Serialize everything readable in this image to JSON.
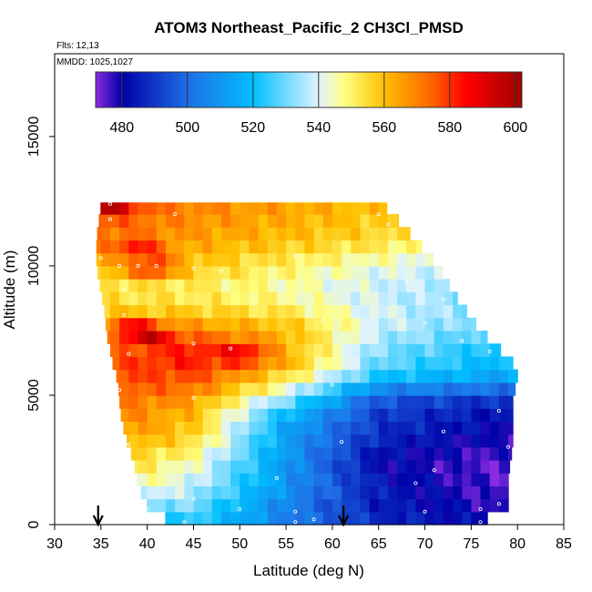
{
  "chart_data": {
    "type": "heatmap",
    "title": "ATOM3 Northeast_Pacific_2 CH3Cl_PMSD",
    "flights_text": "Flts: 12,13",
    "dates_text": "MMDD: 1025,1027",
    "xlabel": "Latitude (deg N)",
    "ylabel": "Altitude (m)",
    "xlim": [
      30,
      85
    ],
    "ylim": [
      0,
      18200
    ],
    "x_ticks": [
      30,
      35,
      40,
      45,
      50,
      55,
      60,
      65,
      70,
      75,
      80,
      85
    ],
    "y_ticks": [
      0,
      5000,
      10000,
      15000
    ],
    "grid": false,
    "colorbar": {
      "placement": "top",
      "range": [
        472,
        602
      ],
      "tick_values": [
        480,
        500,
        520,
        540,
        560,
        580,
        600
      ],
      "tick_labels": [
        "480",
        "500",
        "520",
        "540",
        "560",
        "580",
        "600"
      ],
      "colors": [
        "#8a2be2",
        "#0000a8",
        "#1e6ee6",
        "#00bfff",
        "#dff3ff",
        "#ffff80",
        "#ffc000",
        "#ff6000",
        "#ff0000",
        "#a00000"
      ],
      "color_stops": [
        472,
        480,
        500,
        520,
        540,
        548,
        560,
        575,
        585,
        602
      ]
    },
    "arrows": [
      34.7,
      61.2
    ],
    "grid_spacing": {
      "dlat": 1,
      "dalt": 500
    },
    "field_profile": {
      "altitude_m": [
        0,
        700,
        1500,
        2500,
        3000,
        3600,
        4500,
        5000,
        5500,
        6000,
        6500,
        6800,
        7500,
        8000,
        9000,
        10000,
        11000,
        12400
      ],
      "left_edge_lat": [
        43,
        40,
        39,
        38.5,
        38,
        37.5,
        37,
        37,
        36.8,
        36.5,
        36,
        36,
        35.5,
        35.5,
        35,
        34.5,
        34.5,
        35
      ],
      "right_edge_lat": [
        75.5,
        79,
        79,
        79.2,
        79.5,
        79.5,
        79.5,
        79.5,
        80,
        80,
        79,
        78,
        76,
        75,
        73,
        71.5,
        69,
        65.5
      ],
      "south_lat": [
        36,
        45,
        55,
        65,
        77
      ],
      "values": [
        [
          515,
          522,
          505,
          488,
          482
        ],
        [
          535,
          530,
          505,
          485,
          478
        ],
        [
          548,
          538,
          510,
          485,
          475
        ],
        [
          560,
          545,
          510,
          480,
          475
        ],
        [
          562,
          552,
          512,
          485,
          478
        ],
        [
          568,
          558,
          512,
          488,
          480
        ],
        [
          572,
          562,
          522,
          492,
          485
        ],
        [
          575,
          568,
          538,
          498,
          492
        ],
        [
          578,
          575,
          548,
          515,
          510
        ],
        [
          578,
          580,
          560,
          528,
          518
        ],
        [
          575,
          585,
          565,
          530,
          520
        ],
        [
          572,
          583,
          562,
          532,
          522
        ],
        [
          566,
          570,
          562,
          538,
          528
        ],
        [
          560,
          560,
          555,
          540,
          530
        ],
        [
          552,
          550,
          545,
          538,
          532
        ],
        [
          562,
          558,
          550,
          542,
          538
        ],
        [
          570,
          565,
          560,
          555,
          545
        ],
        [
          578,
          570,
          565,
          560,
          552
        ]
      ],
      "hotspots": [
        {
          "lat": 50,
          "alt_m": 6600,
          "value": 590
        },
        {
          "lat": 40,
          "alt_m": 7300,
          "value": 598
        },
        {
          "lat": 40.5,
          "alt_m": 10000,
          "value": 590
        },
        {
          "lat": 39,
          "alt_m": 10800,
          "value": 585
        },
        {
          "lat": 36,
          "alt_m": 12300,
          "value": 598
        },
        {
          "lat": 38.5,
          "alt_m": 7600,
          "value": 588
        }
      ]
    },
    "sample_points": [
      [
        36,
        12400
      ],
      [
        36,
        11800
      ],
      [
        43,
        12000
      ],
      [
        65,
        12000
      ],
      [
        66,
        11600
      ],
      [
        70,
        11000
      ],
      [
        35,
        10300
      ],
      [
        37,
        10000
      ],
      [
        39,
        10000
      ],
      [
        41,
        10000
      ],
      [
        45,
        9900
      ],
      [
        48,
        9800
      ],
      [
        56,
        10400
      ],
      [
        73,
        10100
      ],
      [
        68,
        9400
      ],
      [
        72,
        8700
      ],
      [
        37.5,
        9100
      ],
      [
        37.5,
        8100
      ],
      [
        45,
        7000
      ],
      [
        49,
        6800
      ],
      [
        59,
        7900
      ],
      [
        70,
        7800
      ],
      [
        74,
        7100
      ],
      [
        77,
        6700
      ],
      [
        38,
        6600
      ],
      [
        37,
        5200
      ],
      [
        60,
        5400
      ],
      [
        45,
        4900
      ],
      [
        78,
        4400
      ],
      [
        72,
        3600
      ],
      [
        61,
        3200
      ],
      [
        79,
        3000
      ],
      [
        38,
        3100
      ],
      [
        69,
        1600
      ],
      [
        71,
        2100
      ],
      [
        54,
        1800
      ],
      [
        45,
        1000
      ],
      [
        40,
        600
      ],
      [
        44,
        100
      ],
      [
        50,
        600
      ],
      [
        56,
        100
      ],
      [
        58,
        200
      ],
      [
        70,
        500
      ],
      [
        76,
        600
      ],
      [
        78,
        800
      ],
      [
        76,
        100
      ],
      [
        56,
        500
      ]
    ]
  }
}
